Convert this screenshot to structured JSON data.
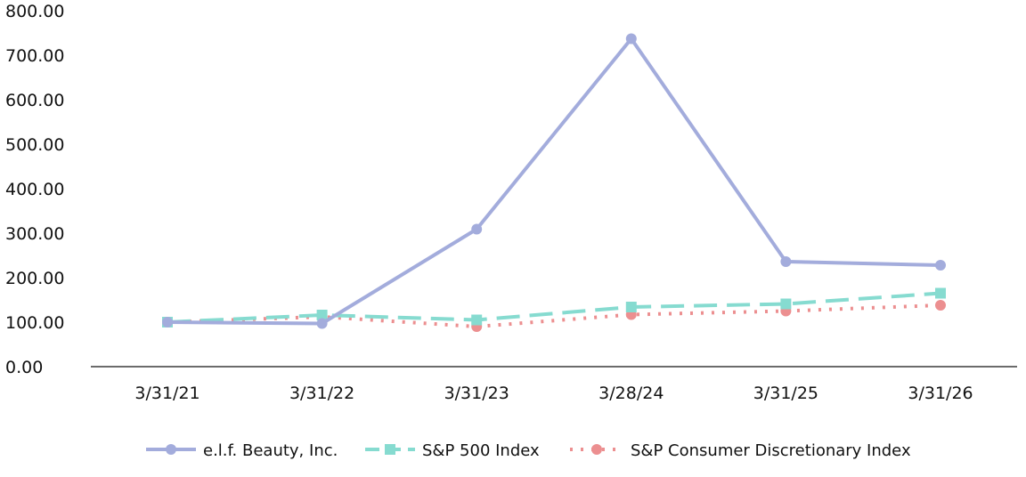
{
  "chart_data": {
    "type": "line",
    "categories": [
      "3/31/21",
      "3/31/22",
      "3/31/23",
      "3/28/24",
      "3/31/25",
      "3/31/26"
    ],
    "ylim": [
      0,
      800
    ],
    "yticks": [
      "0.00",
      "100.00",
      "200.00",
      "300.00",
      "400.00",
      "500.00",
      "600.00",
      "700.00",
      "800.00"
    ],
    "grid": false,
    "legend_position": "bottom",
    "series": [
      {
        "name": "e.l.f. Beauty, Inc.",
        "values": [
          100,
          97,
          309,
          737,
          236,
          228
        ],
        "color": "#a3acdc",
        "style": "solid",
        "marker": "circle"
      },
      {
        "name": "S&P 500 Index",
        "values": [
          100,
          116,
          105,
          134,
          141,
          165
        ],
        "color": "#86dbd0",
        "style": "dashed",
        "marker": "square"
      },
      {
        "name": "S&P Consumer Discretionary Index",
        "values": [
          100,
          112,
          90,
          117,
          125,
          138
        ],
        "color": "#ec8f90",
        "style": "dotted",
        "marker": "circle"
      }
    ]
  }
}
